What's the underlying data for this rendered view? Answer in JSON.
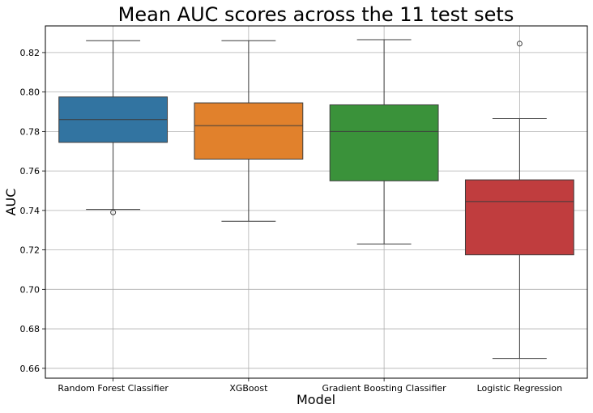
{
  "chart_data": {
    "type": "box",
    "title": "Mean AUC scores across the 11 test sets",
    "xlabel": "Model",
    "ylabel": "AUC",
    "ylim": [
      0.655,
      0.8335
    ],
    "yticks": [
      0.66,
      0.68,
      0.7,
      0.72,
      0.74,
      0.76,
      0.78,
      0.8,
      0.82
    ],
    "ytick_labels": [
      "0.66",
      "0.68",
      "0.70",
      "0.72",
      "0.74",
      "0.76",
      "0.78",
      "0.80",
      "0.82"
    ],
    "grid": true,
    "categories": [
      "Random Forest Classifier",
      "XGBoost",
      "Gradient Boosting Classifier",
      "Logistic Regression"
    ],
    "series": [
      {
        "category": "Random Forest Classifier",
        "color": "#3274a1",
        "whisker_low": 0.7405,
        "q1": 0.7745,
        "median": 0.786,
        "q3": 0.7975,
        "whisker_high": 0.826,
        "outliers": [
          0.739
        ]
      },
      {
        "category": "XGBoost",
        "color": "#e1812c",
        "whisker_low": 0.7345,
        "q1": 0.766,
        "median": 0.783,
        "q3": 0.7945,
        "whisker_high": 0.826,
        "outliers": []
      },
      {
        "category": "Gradient Boosting Classifier",
        "color": "#3a923a",
        "whisker_low": 0.723,
        "q1": 0.755,
        "median": 0.78,
        "q3": 0.7935,
        "whisker_high": 0.8265,
        "outliers": []
      },
      {
        "category": "Logistic Regression",
        "color": "#c03d3e",
        "whisker_low": 0.665,
        "q1": 0.7175,
        "median": 0.7445,
        "q3": 0.7555,
        "whisker_high": 0.7865,
        "outliers": [
          0.8245
        ]
      }
    ]
  }
}
